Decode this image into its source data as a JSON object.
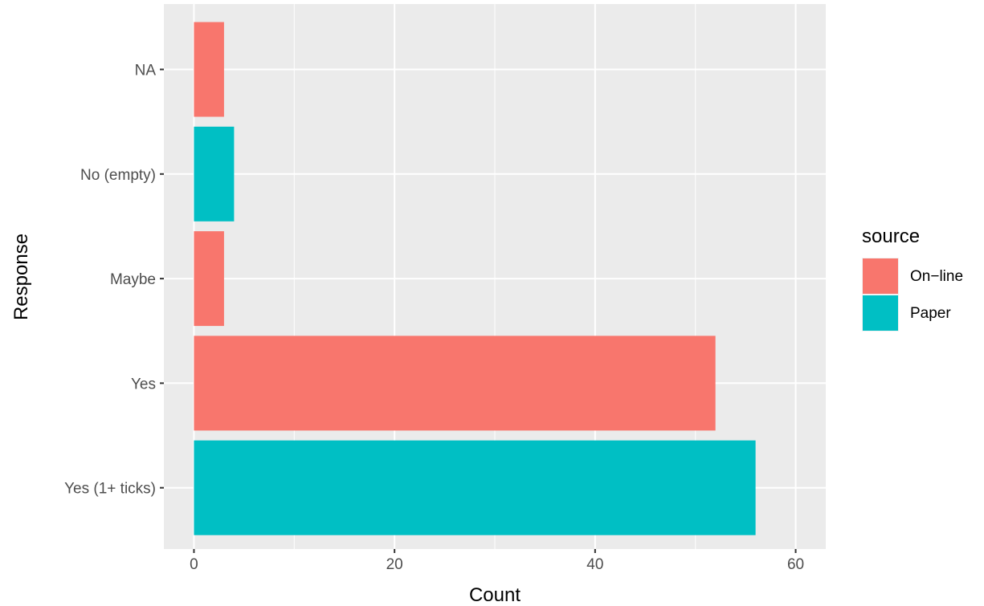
{
  "chart_data": {
    "type": "bar",
    "orientation": "horizontal",
    "xlabel": "Count",
    "ylabel": "Response",
    "xlim": [
      -3,
      63
    ],
    "x_ticks": [
      0,
      20,
      40,
      60
    ],
    "grid": true,
    "legend_position": "right",
    "legend_title": "source",
    "categories": [
      "Yes (1+ ticks)",
      "Yes",
      "Maybe",
      "No (empty)",
      "NA"
    ],
    "series": [
      {
        "name": "On−line",
        "color": "#F8766D"
      },
      {
        "name": "Paper",
        "color": "#00BFC4"
      }
    ],
    "bars": [
      {
        "category": "Yes (1+ ticks)",
        "series": "Paper",
        "value": 56
      },
      {
        "category": "Yes",
        "series": "On−line",
        "value": 52
      },
      {
        "category": "Maybe",
        "series": "On−line",
        "value": 3
      },
      {
        "category": "No (empty)",
        "series": "Paper",
        "value": 4
      },
      {
        "category": "NA",
        "series": "On−line",
        "value": 3
      }
    ]
  }
}
